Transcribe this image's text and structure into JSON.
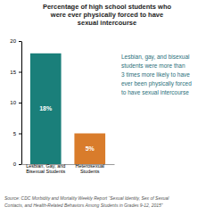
{
  "chart_data": {
    "type": "bar",
    "title": "Percentage of high school students who\nwere ever physically forced to have\nsexual intercourse",
    "categories": [
      "Lesbian, Gay, and\nBisexual Students",
      "Heterosexual\nStudents"
    ],
    "values": [
      18,
      5
    ],
    "value_labels": [
      "18%",
      "5%"
    ],
    "data_labels": true,
    "colors": [
      "#1a7f7a",
      "#d97c2b"
    ],
    "ylim": [
      0,
      20
    ],
    "yticks": [
      0,
      5,
      10,
      15,
      20
    ],
    "grid": false,
    "annotations": [
      "Lesbian, gay, and bisexual",
      "students were more than",
      "3 times more likely to have",
      "ever been physically forced",
      "to have sexual intercourse"
    ],
    "source": [
      "Source: CDC Morbidity and Mortality Weekly Report “Sexual Identity, Sex of Sexual",
      "Contacts, and Health-Related Behaviors Among Students in Grades 9-12, 2015”"
    ]
  }
}
